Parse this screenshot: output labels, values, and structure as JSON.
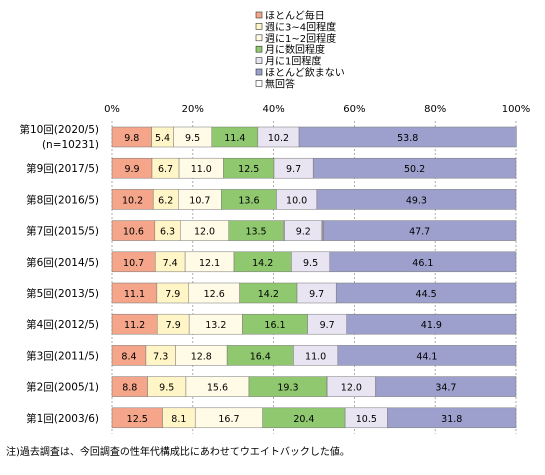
{
  "chart_data": {
    "type": "bar",
    "orientation": "horizontal",
    "stacked": "percent",
    "title": "",
    "xlabel": "",
    "ylabel": "",
    "xlim": [
      0,
      100
    ],
    "x_ticks": [
      "0%",
      "20%",
      "40%",
      "60%",
      "80%",
      "100%"
    ],
    "grid": "vertical dashed",
    "legend_position": "top-right",
    "categories": [
      "第10回(2020/5)",
      "第9回(2017/5)",
      "第8回(2016/5)",
      "第7回(2015/5)",
      "第6回(2014/5)",
      "第5回(2013/5)",
      "第4回(2012/5)",
      "第3回(2011/5)",
      "第2回(2005/1)",
      "第1回(2003/6)"
    ],
    "category_sublabels": [
      "(n=10231)",
      "",
      "",
      "",
      "",
      "",
      "",
      "",
      "",
      ""
    ],
    "series": [
      {
        "name": "ほとんど毎日",
        "color": "#f4a58a",
        "values": [
          9.8,
          9.9,
          10.2,
          10.6,
          10.7,
          11.1,
          11.2,
          8.4,
          8.8,
          12.5
        ]
      },
      {
        "name": "週に3~4回程度",
        "color": "#fff5c6",
        "values": [
          5.4,
          6.7,
          6.2,
          6.3,
          7.4,
          7.9,
          7.9,
          7.3,
          9.5,
          8.1
        ]
      },
      {
        "name": "週に1~2回程度",
        "color": "#fffbe6",
        "values": [
          9.5,
          11.0,
          10.7,
          12.0,
          12.1,
          12.6,
          13.2,
          12.8,
          15.6,
          16.7
        ]
      },
      {
        "name": "月に数回程度",
        "color": "#8fc86f",
        "values": [
          11.4,
          12.5,
          13.6,
          13.5,
          14.2,
          14.2,
          16.1,
          16.4,
          19.3,
          20.4
        ]
      },
      {
        "name": "月に1回程度",
        "color": "#e9e4f2",
        "values": [
          10.2,
          9.7,
          10.0,
          9.2,
          9.5,
          9.7,
          9.7,
          11.0,
          12.0,
          10.5
        ]
      },
      {
        "name": "ほとんど飲まない",
        "color": "#9da0cc",
        "values": [
          53.8,
          50.2,
          49.3,
          47.7,
          46.1,
          44.5,
          41.9,
          44.1,
          34.7,
          31.8
        ]
      },
      {
        "name": "無回答",
        "color": "#ffffff",
        "values": [
          null,
          null,
          null,
          null,
          null,
          null,
          null,
          null,
          null,
          null
        ]
      }
    ],
    "unlabeled_segments_note": "small unlabeled remainder segments between 月に数回程度 and 月に1回程度, and between 月に1回程度 and ほとんど飲まない, are drawn to fill each bar to 100%",
    "footnote": "注)過去調査は、今回調査の性年代構成比にあわせてウエイトバックした値。"
  }
}
